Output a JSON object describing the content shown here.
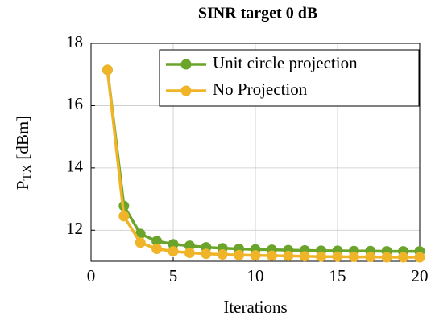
{
  "chart_data": {
    "type": "line",
    "title": "SINR target 0 dB",
    "xlabel": "Iterations",
    "ylabel": {
      "base": "P",
      "subscript": "TX",
      "suffix": "[dBm]"
    },
    "x": [
      1,
      2,
      3,
      4,
      5,
      6,
      7,
      8,
      9,
      10,
      11,
      12,
      13,
      14,
      15,
      16,
      17,
      18,
      19,
      20
    ],
    "series": [
      {
        "name": "Unit circle projection",
        "color": "#6aa42a",
        "values": [
          17.15,
          12.78,
          11.88,
          11.65,
          11.55,
          11.5,
          11.45,
          11.42,
          11.4,
          11.38,
          11.37,
          11.36,
          11.35,
          11.34,
          11.34,
          11.33,
          11.33,
          11.32,
          11.32,
          11.32
        ]
      },
      {
        "name": "No Projection",
        "color": "#f0b428",
        "values": [
          17.15,
          12.45,
          11.6,
          11.4,
          11.32,
          11.27,
          11.24,
          11.22,
          11.2,
          11.19,
          11.18,
          11.17,
          11.16,
          11.15,
          11.15,
          11.14,
          11.14,
          11.13,
          11.13,
          11.13
        ]
      }
    ],
    "xlim": [
      0,
      20
    ],
    "xticks": [
      0,
      5,
      10,
      15,
      20
    ],
    "ylim": [
      11,
      18
    ],
    "yticks": [
      12,
      14,
      16,
      18
    ],
    "grid": true,
    "legend": "upper right"
  }
}
